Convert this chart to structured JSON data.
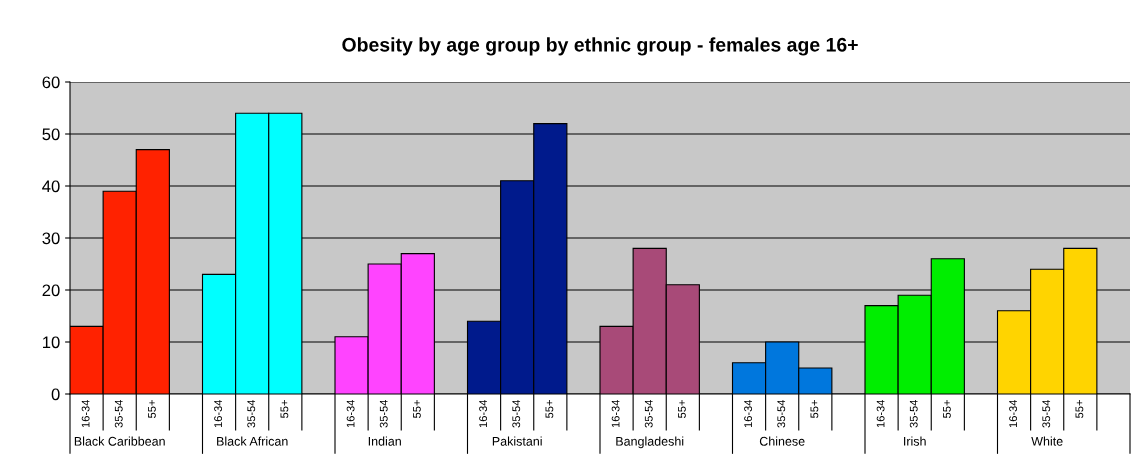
{
  "chart_data": {
    "type": "bar",
    "title": "Obesity by age group by ethnic group - females age 16+",
    "categories": [
      "16-34",
      "35-54",
      "55+",
      null,
      "16-34",
      "35-54",
      "55+",
      null,
      "16-34",
      "35-54",
      "55+",
      null,
      "16-34",
      "35-54",
      "55+",
      null,
      "16-34",
      "35-54",
      "55+",
      null,
      "16-34",
      "35-54",
      "55+",
      null,
      "16-34",
      "35-54",
      "55+",
      null,
      "16-34",
      "35-54",
      "55+",
      null
    ],
    "values": [
      13,
      39,
      47,
      null,
      23,
      54,
      54,
      null,
      11,
      25,
      27,
      null,
      14,
      41,
      52,
      null,
      13,
      28,
      21,
      null,
      6,
      10,
      5,
      null,
      17,
      19,
      26,
      null,
      16,
      24,
      28,
      null
    ],
    "colors": [
      "#ff2200",
      "#ff2200",
      "#ff2200",
      "#ff2200",
      "#00ffff",
      "#00ffff",
      "#00ffff",
      "#00ffff",
      "#ff44ff",
      "#ff44ff",
      "#ff44ff",
      "#ff44ff",
      "#001a8c",
      "#001a8c",
      "#001a8c",
      "#001a8c",
      "#a84a78",
      "#a84a78",
      "#a84a78",
      "#a84a78",
      "#0077dd",
      "#0077dd",
      "#0077dd",
      "#0077dd",
      "#00ee00",
      "#00ee00",
      "#00ee00",
      "#00ee00",
      "#ffd400",
      "#ffd400",
      "#ffd400",
      "#ffd400"
    ],
    "annotations": [
      "Black Caribbean",
      "Black African",
      "Indian",
      "Pakistani",
      "Bangladeshi",
      "Chinese",
      "Irish",
      "White"
    ],
    "ylim": [
      0,
      60
    ],
    "yticks": [
      0,
      10,
      20,
      30,
      40,
      50,
      60
    ],
    "grid": "y",
    "legend": false
  }
}
